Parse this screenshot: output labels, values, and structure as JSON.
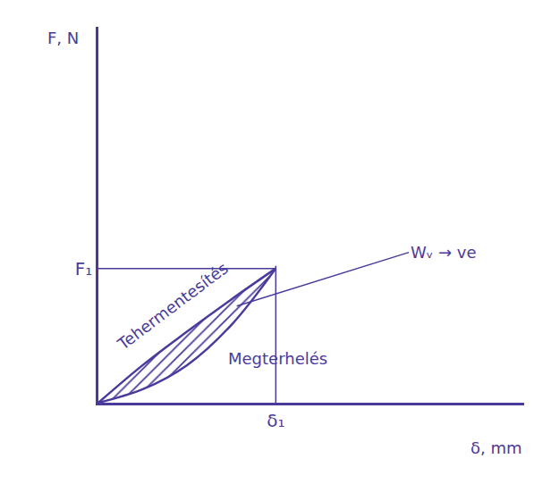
{
  "chart_data": {
    "type": "line",
    "x_label": "δ, mm",
    "y_label": "F, N",
    "xlim": [
      0,
      2.4
    ],
    "ylim": [
      0,
      2.8
    ],
    "xticks": [
      {
        "value": 1,
        "label": "δ₁"
      }
    ],
    "yticks": [
      {
        "value": 1,
        "label": "F₁"
      }
    ],
    "grid": false,
    "x": [
      0,
      0.25,
      0.5,
      0.75,
      1
    ],
    "series": [
      {
        "name": "Megterhelés",
        "color": "#4b3a9c",
        "values": [
          0,
          0.1,
          0.28,
          0.58,
          1
        ]
      },
      {
        "name": "Tehermentesítés",
        "color": "#4b3a9c",
        "values": [
          0,
          0.28,
          0.53,
          0.77,
          1
        ]
      }
    ],
    "annotations": [
      {
        "text": "Wᵥ → ve"
      }
    ]
  }
}
